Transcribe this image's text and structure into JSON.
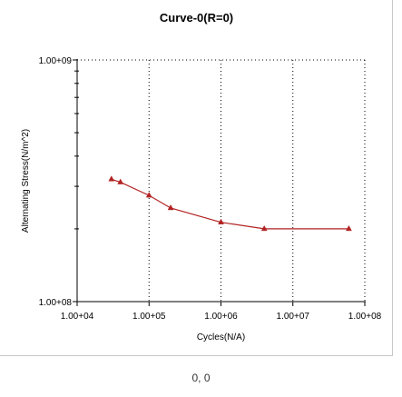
{
  "chart_data": {
    "type": "line",
    "title": "Curve-0(R=0)",
    "xlabel": "Cycles(N/A)",
    "ylabel": "Alternating Stress(N/m^2)",
    "x_scale": "log",
    "y_scale": "log",
    "xlim": [
      10000,
      100000000
    ],
    "ylim": [
      100000000,
      1000000000
    ],
    "x_ticks": [
      10000,
      100000,
      1000000,
      10000000,
      100000000
    ],
    "x_tick_labels": [
      "1.00+04",
      "1.00+05",
      "1.00+06",
      "1.00+07",
      "1.00+08"
    ],
    "y_ticks": [
      100000000,
      1000000000
    ],
    "y_tick_labels": [
      "1.00+08",
      "1.00+09"
    ],
    "grid": true,
    "line_color": "#b22222",
    "marker": "triangle",
    "series": [
      {
        "x": [
          30000,
          40000,
          100000,
          200000,
          1000000,
          4000000,
          60000000
        ],
        "y": [
          321000000,
          312000000,
          275000000,
          244000000,
          213000000,
          200000000,
          200000000
        ]
      }
    ]
  },
  "status": {
    "coordinates": "0, 0"
  }
}
